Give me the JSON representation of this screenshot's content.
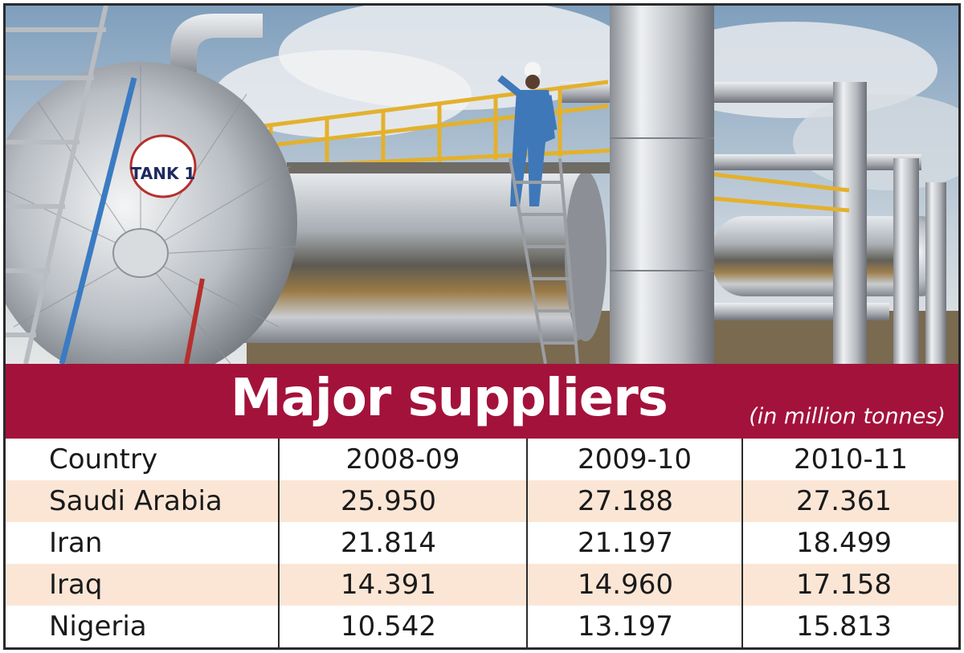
{
  "photo": {
    "tank_label": "TANK 1",
    "colors": {
      "sky": "#9db6cc",
      "steel": "#c9ccd0",
      "railing": "#e8b52a",
      "banner": "#a3123a"
    }
  },
  "banner": {
    "title": "Major suppliers",
    "unit": "(in million tonnes)"
  },
  "chart_data": {
    "type": "table",
    "title": "Major suppliers",
    "subtitle": "(in million tonnes)",
    "columns": [
      "Country",
      "2008-09",
      "2009-10",
      "2010-11"
    ],
    "rows": [
      {
        "country": "Saudi Arabia",
        "values": [
          "25.950",
          "27.188",
          "27.361"
        ]
      },
      {
        "country": "Iran",
        "values": [
          "21.814",
          "21.197",
          "18.499"
        ]
      },
      {
        "country": "Iraq",
        "values": [
          "14.391",
          "14.960",
          "17.158"
        ]
      },
      {
        "country": "Nigeria",
        "values": [
          "10.542",
          "13.197",
          "15.813"
        ]
      }
    ]
  }
}
